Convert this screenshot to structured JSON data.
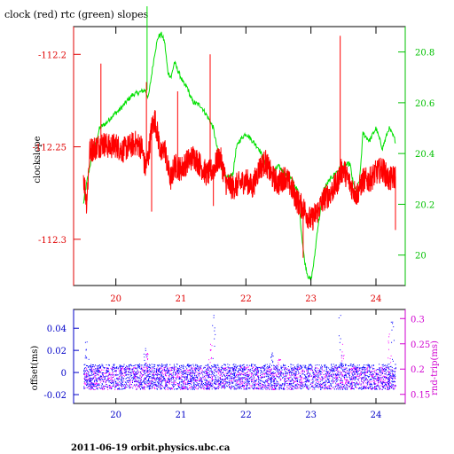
{
  "chart_data": [
    {
      "type": "line",
      "title": "clock (red) rtc (green) slopes",
      "ylabel": "clockslope",
      "x_ticks": [
        "20",
        "21",
        "22",
        "23",
        "24"
      ],
      "xlim": [
        19.35,
        24.45
      ],
      "y_left_ticks": [
        "-112.2",
        "-112.25",
        "-112.3"
      ],
      "ylim_left": [
        -112.325,
        -112.185
      ],
      "y_right_ticks": [
        "20",
        "20.2",
        "20.4",
        "20.6",
        "20.8"
      ],
      "ylim_right": [
        19.88,
        20.9
      ],
      "grid": false,
      "colors": {
        "clock": "#ff0000",
        "rtc": "#00e000",
        "left_axis": "#e00000",
        "right_axis": "#00c000"
      },
      "series": [
        {
          "name": "clock",
          "axis": "left",
          "x": [
            19.5,
            19.55,
            19.6,
            19.7,
            19.8,
            19.9,
            20.0,
            20.1,
            20.2,
            20.3,
            20.4,
            20.45,
            20.5,
            20.55,
            20.6,
            20.65,
            20.7,
            20.75,
            20.8,
            20.85,
            20.9,
            21.0,
            21.1,
            21.2,
            21.3,
            21.4,
            21.5,
            21.6,
            21.7,
            21.8,
            21.9,
            22.0,
            22.1,
            22.2,
            22.3,
            22.4,
            22.5,
            22.6,
            22.7,
            22.8,
            22.9,
            23.0,
            23.1,
            23.2,
            23.3,
            23.4,
            23.45,
            23.5,
            23.6,
            23.7,
            23.8,
            23.9,
            24.0,
            24.1,
            24.2,
            24.3
          ],
          "values": [
            -112.265,
            -112.28,
            -112.252,
            -112.25,
            -112.248,
            -112.25,
            -112.249,
            -112.252,
            -112.25,
            -112.248,
            -112.25,
            -112.262,
            -112.255,
            -112.24,
            -112.235,
            -112.245,
            -112.255,
            -112.25,
            -112.262,
            -112.268,
            -112.26,
            -112.262,
            -112.258,
            -112.255,
            -112.26,
            -112.265,
            -112.262,
            -112.255,
            -112.27,
            -112.272,
            -112.27,
            -112.268,
            -112.272,
            -112.262,
            -112.258,
            -112.266,
            -112.27,
            -112.266,
            -112.272,
            -112.28,
            -112.284,
            -112.29,
            -112.285,
            -112.278,
            -112.275,
            -112.27,
            -112.264,
            -112.262,
            -112.27,
            -112.276,
            -112.268,
            -112.268,
            -112.264,
            -112.262,
            -112.268,
            -112.266
          ]
        },
        {
          "name": "rtc",
          "axis": "right",
          "x": [
            19.5,
            19.55,
            19.6,
            19.7,
            19.75,
            19.85,
            19.95,
            20.05,
            20.15,
            20.25,
            20.35,
            20.45,
            20.5,
            20.6,
            20.65,
            20.7,
            20.75,
            20.8,
            20.85,
            20.9,
            20.95,
            21.0,
            21.05,
            21.1,
            21.15,
            21.2,
            21.3,
            21.4,
            21.5,
            21.6,
            21.7,
            21.8,
            21.85,
            21.9,
            22.0,
            22.1,
            22.2,
            22.3,
            22.4,
            22.5,
            22.6,
            22.7,
            22.8,
            22.85,
            22.9,
            22.95,
            23.0,
            23.05,
            23.1,
            23.2,
            23.3,
            23.4,
            23.5,
            23.6,
            23.65,
            23.7,
            23.75,
            23.8,
            23.9,
            24.0,
            24.1,
            24.2,
            24.3
          ],
          "values": [
            20.2,
            20.28,
            20.35,
            20.45,
            20.5,
            20.52,
            20.55,
            20.57,
            20.6,
            20.63,
            20.64,
            20.65,
            20.62,
            20.8,
            20.86,
            20.87,
            20.84,
            20.72,
            20.7,
            20.76,
            20.73,
            20.7,
            20.67,
            20.66,
            20.62,
            20.6,
            20.59,
            20.55,
            20.5,
            20.36,
            20.3,
            20.32,
            20.42,
            20.45,
            20.48,
            20.45,
            20.42,
            20.36,
            20.32,
            20.35,
            20.32,
            20.3,
            20.25,
            20.1,
            19.98,
            19.92,
            19.9,
            19.98,
            20.1,
            20.26,
            20.3,
            20.33,
            20.35,
            20.36,
            20.28,
            20.25,
            20.3,
            20.48,
            20.45,
            20.5,
            20.42,
            20.5,
            20.45
          ]
        }
      ]
    },
    {
      "type": "scatter",
      "ylabel": "offset(ms)",
      "ylabel_right": "rnd-trip(ms)",
      "x_ticks": [
        "20",
        "21",
        "22",
        "23",
        "24"
      ],
      "xlim": [
        19.35,
        24.45
      ],
      "y_left_ticks": [
        "0.04",
        "0.02",
        "0",
        "-0.02"
      ],
      "ylim_left": [
        -0.028,
        0.057
      ],
      "y_right_ticks": [
        "0.3",
        "0.25",
        "0.2",
        "0.15"
      ],
      "ylim_right": [
        0.132,
        0.318
      ],
      "colors": {
        "offset": "#0000ff",
        "rnd_trip": "#ff00ff",
        "left_axis": "#0000c8",
        "right_axis": "#d000d0"
      },
      "series": [
        {
          "name": "offset",
          "axis": "left",
          "x_range": [
            19.5,
            24.3
          ],
          "band": [
            -0.015,
            0.008
          ],
          "spikes": [
            [
              19.55,
              0.028
            ],
            [
              20.45,
              0.022
            ],
            [
              21.5,
              0.052
            ],
            [
              22.4,
              0.018
            ],
            [
              23.45,
              0.052
            ],
            [
              24.25,
              0.046
            ]
          ]
        },
        {
          "name": "rnd_trip",
          "axis": "right",
          "x_range": [
            19.5,
            24.3
          ],
          "band": [
            0.16,
            0.205
          ],
          "spikes": [
            [
              20.48,
              0.232
            ],
            [
              21.45,
              0.25
            ],
            [
              22.5,
              0.22
            ],
            [
              23.48,
              0.25
            ],
            [
              24.2,
              0.27
            ]
          ]
        }
      ]
    }
  ],
  "footer": "2011-06-19 orbit.physics.ubc.ca"
}
